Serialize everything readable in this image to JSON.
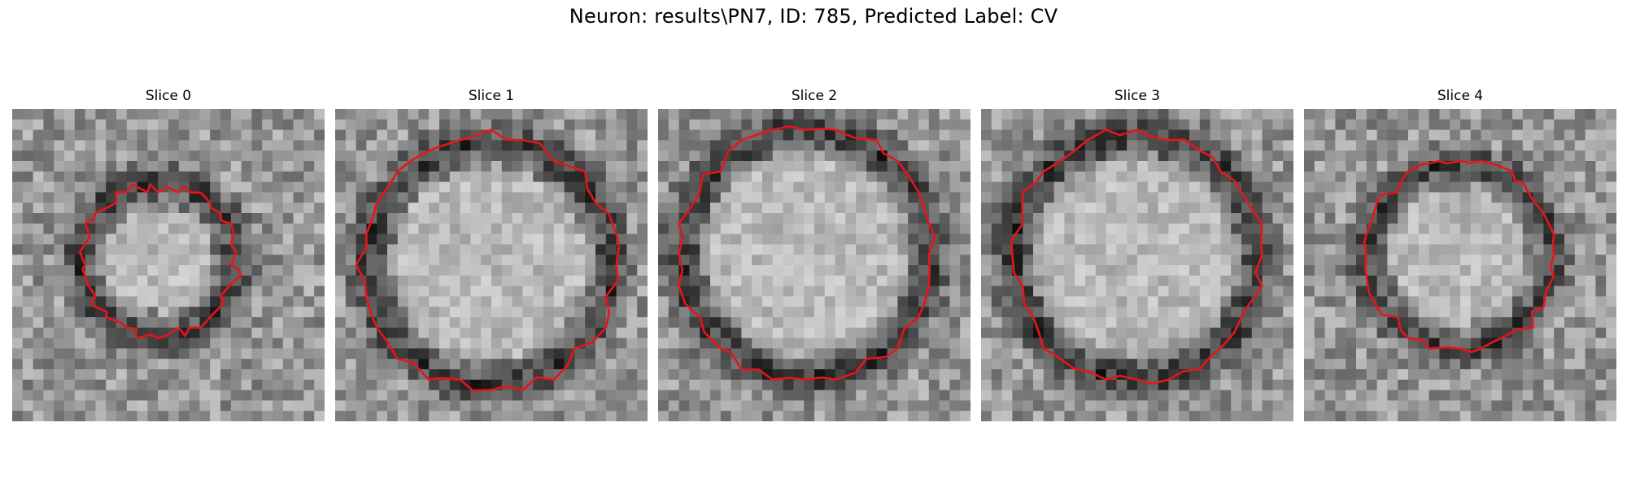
{
  "title": "Neuron: results\\PN7, ID: 785, Predicted Label: CV",
  "slices": [
    {
      "label": "Slice 0"
    },
    {
      "label": "Slice 1"
    },
    {
      "label": "Slice 2"
    },
    {
      "label": "Slice 3"
    },
    {
      "label": "Slice 4"
    }
  ],
  "colors": {
    "contour": "#e8141c",
    "background": "#ffffff"
  }
}
